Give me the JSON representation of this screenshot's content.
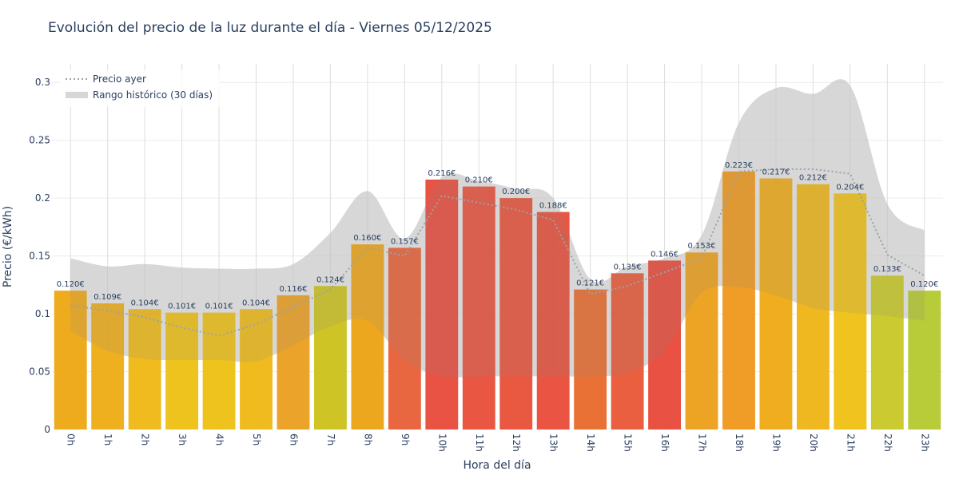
{
  "chart_data": {
    "type": "bar",
    "title": "Evolución del precio de la luz durante el día - Viernes 05/12/2025",
    "xlabel": "Hora del día",
    "ylabel": "Precio (€/kWh)",
    "ylim": [
      0,
      0.316
    ],
    "yticks": [
      0,
      0.05,
      0.1,
      0.15,
      0.2,
      0.25,
      0.3
    ],
    "ytick_labels": [
      "0",
      "0.05",
      "0.1",
      "0.15",
      "0.2",
      "0.25",
      "0.3"
    ],
    "grid": true,
    "legend_position": "top-left",
    "categories": [
      "0h",
      "1h",
      "2h",
      "3h",
      "4h",
      "5h",
      "6h",
      "7h",
      "8h",
      "9h",
      "10h",
      "11h",
      "12h",
      "13h",
      "14h",
      "15h",
      "16h",
      "17h",
      "18h",
      "19h",
      "20h",
      "21h",
      "22h",
      "23h"
    ],
    "values": [
      0.12,
      0.109,
      0.104,
      0.101,
      0.101,
      0.104,
      0.116,
      0.124,
      0.16,
      0.157,
      0.216,
      0.21,
      0.2,
      0.188,
      0.121,
      0.135,
      0.146,
      0.153,
      0.223,
      0.217,
      0.212,
      0.204,
      0.133,
      0.12
    ],
    "value_labels": [
      "0.120€",
      "0.109€",
      "0.104€",
      "0.101€",
      "0.101€",
      "0.104€",
      "0.116€",
      "0.124€",
      "0.160€",
      "0.157€",
      "0.216€",
      "0.210€",
      "0.200€",
      "0.188€",
      "0.121€",
      "0.135€",
      "0.146€",
      "0.153€",
      "0.223€",
      "0.217€",
      "0.212€",
      "0.204€",
      "0.133€",
      "0.120€"
    ],
    "bar_colors": [
      "#eda817",
      "#eead18",
      "#eeb917",
      "#eec116",
      "#eec116",
      "#eeb917",
      "#eaa022",
      "#cdc21f",
      "#eca417",
      "#e8623a",
      "#e84d3e",
      "#e8523d",
      "#e8543c",
      "#e84f3c",
      "#e86c30",
      "#e85a3a",
      "#e84b3c",
      "#eca11d",
      "#ee9a1f",
      "#eeaa18",
      "#eeb61a",
      "#efc117",
      "#c9c92a",
      "#b6c932"
    ],
    "series": [
      {
        "name": "Precio ayer",
        "type": "line",
        "color": "#9aa3a6",
        "values": [
          0.107,
          0.103,
          0.097,
          0.088,
          0.081,
          0.091,
          0.106,
          0.121,
          0.157,
          0.15,
          0.202,
          0.196,
          0.19,
          0.181,
          0.117,
          0.124,
          0.136,
          0.148,
          0.223,
          0.225,
          0.225,
          0.221,
          0.151,
          0.133
        ]
      },
      {
        "name": "Rango histórico (30 días)",
        "type": "band",
        "color": "#d7d7d7",
        "upper": [
          0.148,
          0.141,
          0.143,
          0.14,
          0.139,
          0.139,
          0.143,
          0.17,
          0.206,
          0.165,
          0.218,
          0.215,
          0.208,
          0.2,
          0.13,
          0.141,
          0.148,
          0.168,
          0.265,
          0.295,
          0.29,
          0.297,
          0.195,
          0.172
        ],
        "lower": [
          0.085,
          0.068,
          0.061,
          0.06,
          0.06,
          0.059,
          0.073,
          0.089,
          0.094,
          0.06,
          0.046,
          0.046,
          0.046,
          0.046,
          0.046,
          0.049,
          0.068,
          0.118,
          0.123,
          0.116,
          0.105,
          0.101,
          0.098,
          0.094
        ]
      }
    ]
  }
}
